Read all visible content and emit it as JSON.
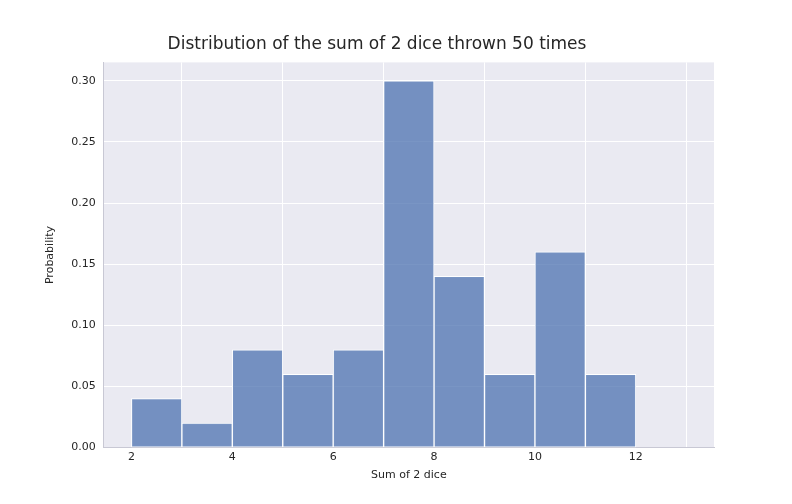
{
  "chart_data": {
    "type": "histogram",
    "title": "Distribution of the sum of 2 dice thrown 50 times",
    "x_label": "Sum of 2 dice",
    "y_label": "Probability",
    "bins": [
      2,
      3,
      4,
      5,
      6,
      7,
      8,
      9,
      10,
      11,
      12,
      13
    ],
    "values": [
      0.04,
      0.02,
      0.08,
      0.06,
      0.08,
      0.3,
      0.14,
      0.06,
      0.16,
      0.06,
      0
    ],
    "color": "#4c72b0",
    "xlim": [
      1.45,
      13.55
    ],
    "xticks": [
      2,
      4,
      6,
      8,
      10,
      12
    ],
    "ylim": [
      0,
      0.315
    ],
    "yticks": [
      {
        "value": 0,
        "label": "0.00"
      },
      {
        "value": 0.05,
        "label": "0.05"
      },
      {
        "value": 0.1,
        "label": "0.10"
      },
      {
        "value": 0.15,
        "label": "0.15"
      },
      {
        "value": 0.2,
        "label": "0.20"
      },
      {
        "value": 0.25,
        "label": "0.25"
      },
      {
        "value": 0.3,
        "label": "0.30"
      }
    ],
    "grid": true
  }
}
